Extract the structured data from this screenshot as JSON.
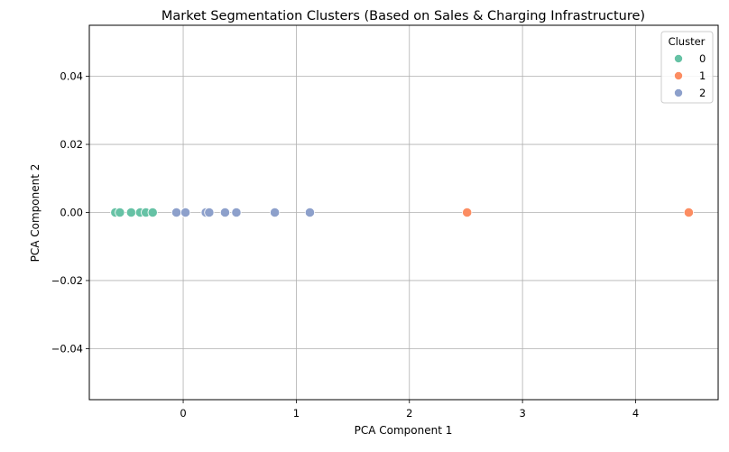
{
  "chart_data": {
    "type": "scatter",
    "title": "Market Segmentation Clusters (Based on Sales & Charging Infrastructure)",
    "xlabel": "PCA Component 1",
    "ylabel": "PCA Component 2",
    "xlim": [
      -0.83,
      4.73
    ],
    "ylim": [
      -0.055,
      0.055
    ],
    "x_ticks": [
      0,
      1,
      2,
      3,
      4
    ],
    "x_tick_labels": [
      "0",
      "1",
      "2",
      "3",
      "4"
    ],
    "y_ticks": [
      0.04,
      0.02,
      0.0,
      -0.02,
      -0.04
    ],
    "y_tick_labels": [
      "0.04",
      "0.02",
      "0.00",
      "−0.02",
      "−0.04"
    ],
    "grid": true,
    "legend": {
      "title": "Cluster",
      "placement": "top-right"
    },
    "series": [
      {
        "name": "0",
        "color": "#66c2a5",
        "x": [
          -0.6,
          -0.56,
          -0.46,
          -0.38,
          -0.33,
          -0.27
        ],
        "y": [
          0,
          0,
          0,
          0,
          0,
          0
        ]
      },
      {
        "name": "1",
        "color": "#fc8d62",
        "x": [
          2.51,
          4.47
        ],
        "y": [
          0,
          0
        ]
      },
      {
        "name": "2",
        "color": "#8da0cb",
        "x": [
          -0.06,
          0.02,
          0.2,
          0.23,
          0.37,
          0.47,
          0.81,
          1.12
        ],
        "y": [
          0,
          0,
          0,
          0,
          0,
          0,
          0,
          0
        ]
      }
    ]
  }
}
